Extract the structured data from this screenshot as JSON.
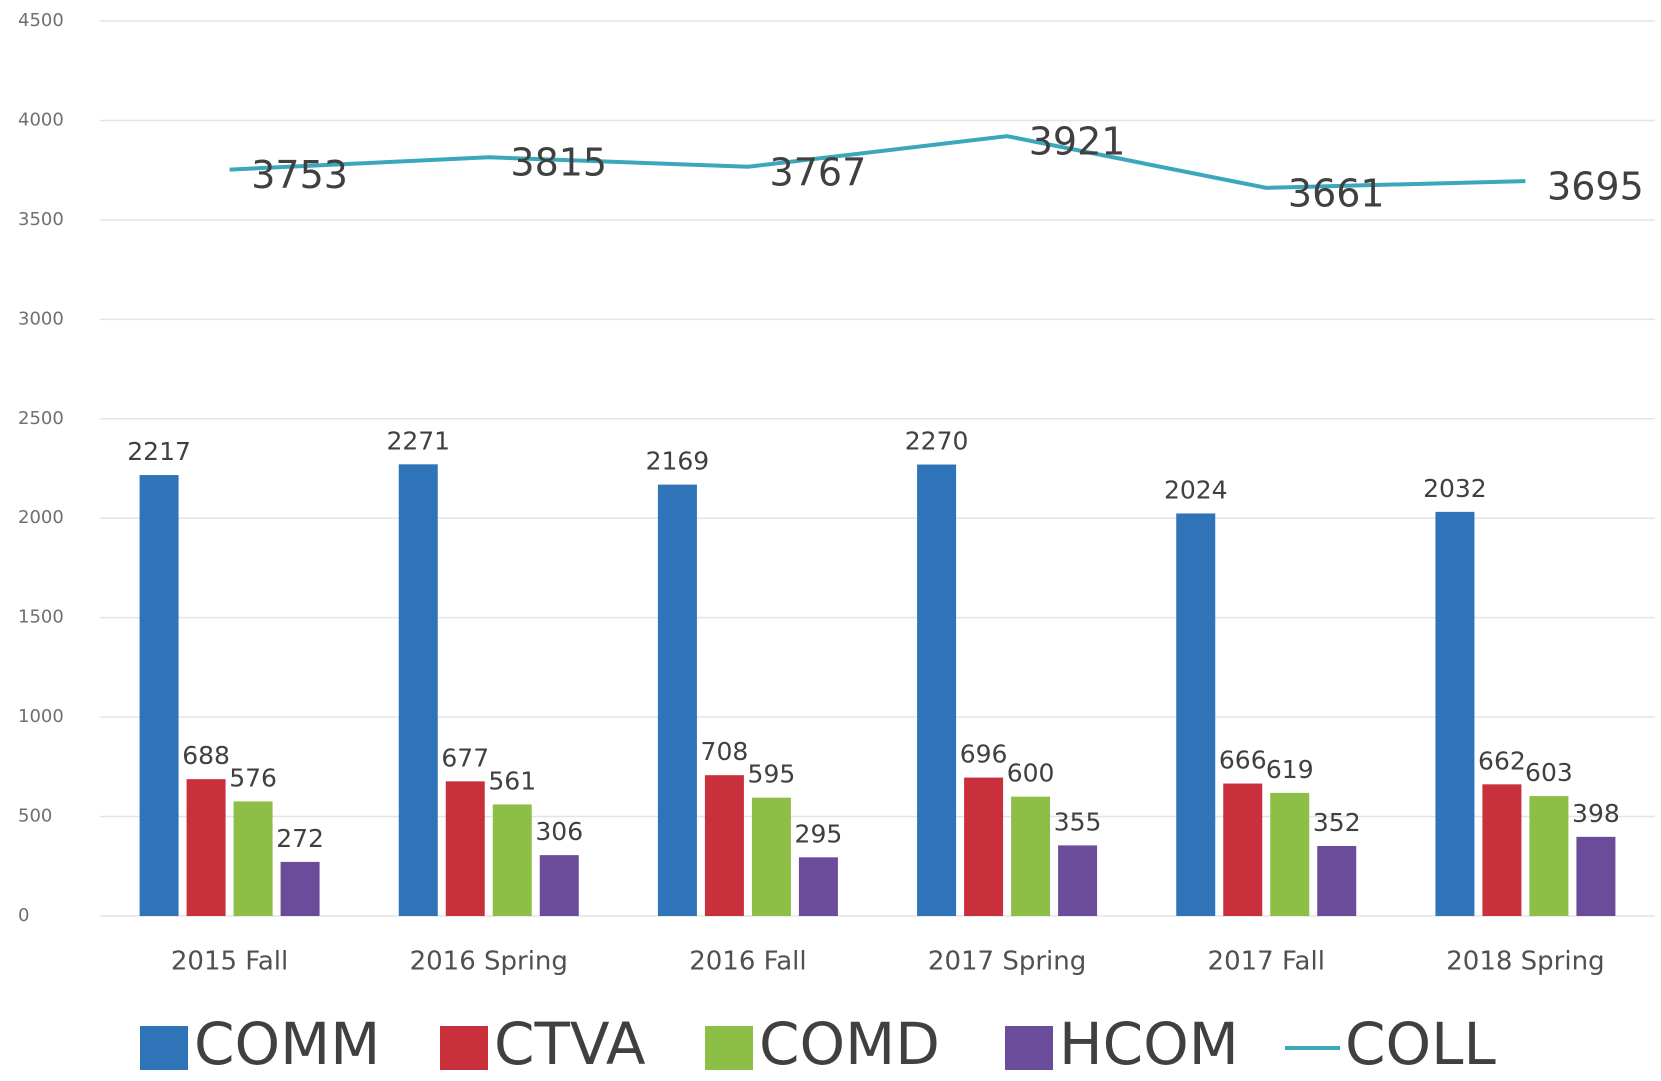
{
  "chart_data": {
    "type": "bar",
    "categories": [
      "2015 Fall",
      "2016 Spring",
      "2016 Fall",
      "2017 Spring",
      "2017 Fall",
      "2018 Spring"
    ],
    "series": [
      {
        "name": "COMM",
        "color": "#2f74b8",
        "values": [
          2217,
          2271,
          2169,
          2270,
          2024,
          2032
        ]
      },
      {
        "name": "CTVA",
        "color": "#c8303b",
        "values": [
          688,
          677,
          708,
          696,
          666,
          662
        ]
      },
      {
        "name": "COMD",
        "color": "#8dbf47",
        "values": [
          576,
          561,
          595,
          600,
          619,
          603
        ]
      },
      {
        "name": "HCOM",
        "color": "#6b4c9b",
        "values": [
          272,
          306,
          295,
          355,
          352,
          398
        ]
      },
      {
        "name": "COLL",
        "type": "line",
        "color": "#3aa7ba",
        "values": [
          3753,
          3815,
          3767,
          3921,
          3661,
          3695
        ]
      }
    ],
    "ylim": [
      0,
      4500
    ],
    "yticks": [
      0,
      500,
      1000,
      1500,
      2000,
      2500,
      3000,
      3500,
      4000,
      4500
    ],
    "grid": true,
    "legend": "bottom"
  }
}
